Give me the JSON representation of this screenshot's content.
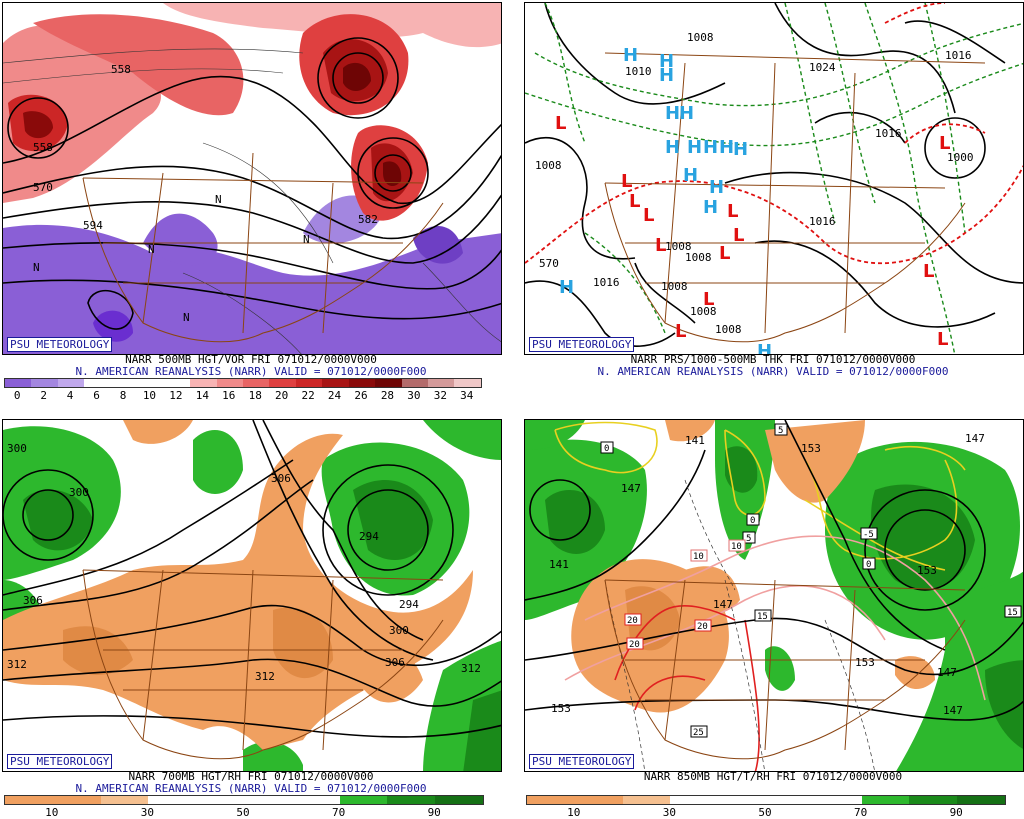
{
  "panels": {
    "p1": {
      "badge": "PSU METEOROLOGY",
      "line1": "NARR 500MB HGT/VOR FRI 071012/0000V000",
      "line2": "N. AMERICAN REANALYSIS (NARR) VALID = 071012/0000F000",
      "colorbar_ticks": [
        "0",
        "2",
        "4",
        "6",
        "8",
        "10",
        "12",
        "14",
        "16",
        "18",
        "20",
        "22",
        "24",
        "26",
        "28",
        "30",
        "32",
        "34"
      ],
      "colorbar_colors": [
        "#8a5fd6",
        "#a386e0",
        "#c0a8ec",
        "#ffffff",
        "#ffffff",
        "#ffffff",
        "#ffffff",
        "#f7b3b3",
        "#f08a8a",
        "#e86464",
        "#df4040",
        "#cc2626",
        "#a81414",
        "#8a0a0a",
        "#6e0505",
        "#b36b6b",
        "#d49a9a",
        "#f0c8c8"
      ],
      "labels": [
        "558",
        "558",
        "570",
        "594",
        "582",
        "N",
        "N",
        "N",
        "N",
        "N"
      ]
    },
    "p2": {
      "badge": "PSU METEOROLOGY",
      "line1": "NARR PRS/1000-500MB THK FRI 071012/0000V000",
      "line2": "N. AMERICAN REANALYSIS (NARR) VALID = 071012/0000F000",
      "labels": [
        "1008",
        "1010",
        "1024",
        "1016",
        "1008",
        "1016",
        "1000",
        "1008",
        "1008",
        "1016",
        "1008",
        "570",
        "1016",
        "1008",
        "1008"
      ],
      "high": "H",
      "low": "L"
    },
    "p3": {
      "badge": "PSU METEOROLOGY",
      "line1": "NARR 700MB HGT/RH FRI 071012/0000V000",
      "line2": "N. AMERICAN REANALYSIS (NARR) VALID = 071012/0000F000",
      "colorbar_ticks": [
        "10",
        "30",
        "50",
        "70",
        "90"
      ],
      "labels": [
        "300",
        "300",
        "306",
        "294",
        "294",
        "300",
        "306",
        "312",
        "312",
        "312",
        "306"
      ]
    },
    "p4": {
      "badge": "PSU METEOROLOGY",
      "line1": "NARR 850MB HGT/T/RH FRI 071012/0000V000",
      "colorbar_ticks": [
        "10",
        "30",
        "50",
        "70",
        "90"
      ],
      "labels": [
        "141",
        "153",
        "141",
        "147",
        "153",
        "147",
        "147",
        "153",
        "147",
        "147",
        "153"
      ],
      "boxed": [
        "0",
        "5",
        "5",
        "0",
        "-5",
        "0",
        "10",
        "10",
        "15",
        "20",
        "20",
        "20",
        "15",
        "25"
      ]
    }
  }
}
